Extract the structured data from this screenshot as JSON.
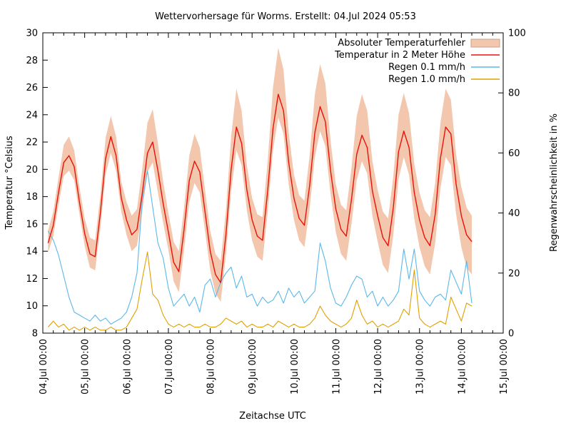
{
  "chart_data": {
    "type": "line",
    "title": "Wettervorhersage für Worms. Erstellt: 04.Jul 2024 05:53",
    "xlabel": "Zeitachse UTC",
    "ylabel_left": "Temperatur °Celsius",
    "ylabel_right": "Regenwahrscheinlichkeit in %",
    "grid": false,
    "legend_position": "top-right-inside",
    "x_axis": {
      "tick_labels": [
        "04.Jul 00:00",
        "05.Jul 00:00",
        "06.Jul 00:00",
        "07.Jul 00:00",
        "08.Jul 00:00",
        "09.Jul 00:00",
        "10.Jul 00:00",
        "11.Jul 00:00",
        "12.Jul 00:00",
        "13.Jul 00:00",
        "14.Jul 00:00",
        "15.Jul 00:00"
      ],
      "range_hours": [
        0,
        264
      ],
      "major_step_hours": 24,
      "minor_step_hours": 6
    },
    "y_axis_left": {
      "min": 8,
      "max": 30,
      "ticks": [
        8,
        10,
        12,
        14,
        16,
        18,
        20,
        22,
        24,
        26,
        28,
        30
      ]
    },
    "y_axis_right": {
      "min": 0,
      "max": 100,
      "ticks": [
        0,
        20,
        40,
        60,
        80,
        100
      ]
    },
    "time_hours": [
      3,
      6,
      9,
      12,
      15,
      18,
      21,
      24,
      27,
      30,
      33,
      36,
      39,
      42,
      45,
      48,
      51,
      54,
      57,
      60,
      63,
      66,
      69,
      72,
      75,
      78,
      81,
      84,
      87,
      90,
      93,
      96,
      99,
      102,
      105,
      108,
      111,
      114,
      117,
      120,
      123,
      126,
      129,
      132,
      135,
      138,
      141,
      144,
      147,
      150,
      153,
      156,
      159,
      162,
      165,
      168,
      171,
      174,
      177,
      180,
      183,
      186,
      189,
      192,
      195,
      198,
      201,
      204,
      207,
      210,
      213,
      216,
      219,
      222,
      225,
      228,
      231,
      234,
      237,
      240,
      243,
      246
    ],
    "series": [
      {
        "name": "Absoluter Temperaturfehler",
        "kind": "band",
        "axis": "left",
        "color": "#f3c7ad",
        "edge_color": "#c8a088",
        "err_up": [
          0.9,
          1.0,
          1.1,
          1.3,
          1.4,
          1.2,
          1.1,
          1.1,
          1.2,
          1.2,
          1.3,
          1.5,
          1.5,
          1.4,
          1.2,
          1.3,
          1.4,
          1.5,
          1.8,
          2.2,
          2.4,
          2.0,
          1.6,
          1.4,
          1.5,
          1.5,
          1.6,
          1.8,
          2.0,
          1.8,
          1.6,
          1.5,
          1.5,
          1.6,
          1.8,
          2.4,
          2.8,
          2.4,
          1.8,
          1.6,
          1.6,
          1.7,
          2.2,
          3.0,
          3.4,
          3.0,
          2.2,
          1.7,
          1.7,
          1.8,
          2.2,
          2.8,
          3.1,
          2.8,
          2.2,
          1.8,
          1.8,
          1.9,
          2.3,
          2.8,
          3.0,
          2.7,
          2.2,
          1.9,
          1.9,
          2.0,
          2.3,
          2.7,
          2.8,
          2.5,
          2.1,
          2.0,
          2.0,
          2.1,
          2.3,
          2.6,
          2.8,
          2.5,
          2.2,
          2.1,
          2.0,
          1.9
        ],
        "err_dn": [
          0.7,
          0.8,
          0.9,
          1.0,
          1.1,
          1.0,
          0.9,
          0.9,
          1.0,
          1.0,
          1.1,
          1.2,
          1.2,
          1.1,
          1.0,
          1.1,
          1.2,
          1.2,
          1.3,
          1.4,
          1.5,
          1.6,
          1.4,
          1.3,
          1.4,
          1.5,
          1.5,
          1.6,
          1.6,
          1.5,
          1.4,
          1.4,
          1.4,
          1.4,
          1.5,
          1.6,
          1.7,
          1.6,
          1.5,
          1.5,
          1.5,
          1.5,
          1.6,
          1.6,
          1.7,
          1.7,
          1.6,
          1.6,
          1.6,
          1.6,
          1.7,
          1.8,
          1.8,
          1.8,
          1.7,
          1.7,
          1.8,
          1.8,
          1.8,
          1.9,
          1.9,
          1.9,
          1.8,
          1.9,
          2.0,
          2.0,
          2.0,
          2.0,
          1.9,
          2.0,
          1.9,
          2.0,
          2.1,
          2.1,
          2.1,
          2.2,
          2.2,
          2.3,
          2.2,
          2.3,
          2.4,
          2.4
        ]
      },
      {
        "name": "Temperatur in 2 Meter Höhe",
        "kind": "line",
        "axis": "left",
        "color": "#e8120b",
        "width": 1.4,
        "values": [
          14.6,
          15.9,
          18.3,
          20.5,
          21.0,
          20.2,
          17.6,
          15.3,
          13.8,
          13.6,
          16.8,
          20.8,
          22.4,
          21.0,
          17.9,
          16.3,
          15.2,
          15.6,
          18.2,
          21.2,
          22.0,
          19.9,
          17.5,
          15.4,
          13.2,
          12.5,
          15.6,
          19.2,
          20.6,
          19.8,
          16.9,
          14.0,
          12.3,
          11.7,
          15.2,
          20.0,
          23.1,
          21.9,
          18.5,
          16.3,
          15.1,
          14.8,
          18.5,
          23.0,
          25.5,
          24.3,
          20.5,
          17.9,
          16.4,
          15.9,
          18.8,
          22.7,
          24.6,
          23.5,
          19.9,
          17.1,
          15.6,
          15.1,
          17.8,
          21.1,
          22.5,
          21.6,
          18.4,
          16.6,
          15.0,
          14.4,
          17.2,
          21.3,
          22.8,
          21.6,
          18.3,
          16.3,
          15.0,
          14.4,
          16.7,
          20.8,
          23.1,
          22.6,
          18.9,
          16.6,
          15.2,
          14.7
        ]
      },
      {
        "name": "Regen 0.1 mm/h",
        "kind": "line",
        "axis": "right",
        "color": "#5bb8ea",
        "width": 1.1,
        "values": [
          34,
          31,
          26,
          19,
          12,
          7,
          6,
          5,
          4,
          6,
          4,
          5,
          3,
          4,
          5,
          7,
          12,
          20,
          44,
          54,
          42,
          30,
          25,
          15,
          9,
          11,
          13,
          9,
          12,
          7,
          16,
          18,
          12,
          17,
          20,
          22,
          15,
          19,
          12,
          13,
          9,
          12,
          10,
          11,
          14,
          10,
          15,
          12,
          14,
          10,
          12,
          14,
          30,
          24,
          15,
          10,
          9,
          12,
          16,
          19,
          18,
          12,
          14,
          9,
          12,
          9,
          11,
          14,
          28,
          18,
          28,
          14,
          11,
          9,
          12,
          13,
          11,
          21,
          17,
          13,
          24,
          10
        ]
      },
      {
        "name": "Regen 1.0 mm/h",
        "kind": "line",
        "axis": "right",
        "color": "#dfa002",
        "width": 1.1,
        "values": [
          2,
          4,
          2,
          3,
          1,
          2,
          1,
          2,
          1,
          2,
          1,
          1,
          2,
          1,
          1,
          2,
          5,
          8,
          18,
          27,
          13,
          11,
          6,
          3,
          2,
          3,
          2,
          3,
          2,
          2,
          3,
          2,
          2,
          3,
          5,
          4,
          3,
          4,
          2,
          3,
          2,
          2,
          3,
          2,
          4,
          3,
          2,
          3,
          2,
          2,
          3,
          5,
          9,
          6,
          4,
          3,
          2,
          3,
          5,
          11,
          6,
          3,
          4,
          2,
          3,
          2,
          3,
          4,
          8,
          6,
          21,
          5,
          3,
          2,
          3,
          4,
          3,
          12,
          8,
          4,
          10,
          9
        ]
      }
    ]
  }
}
